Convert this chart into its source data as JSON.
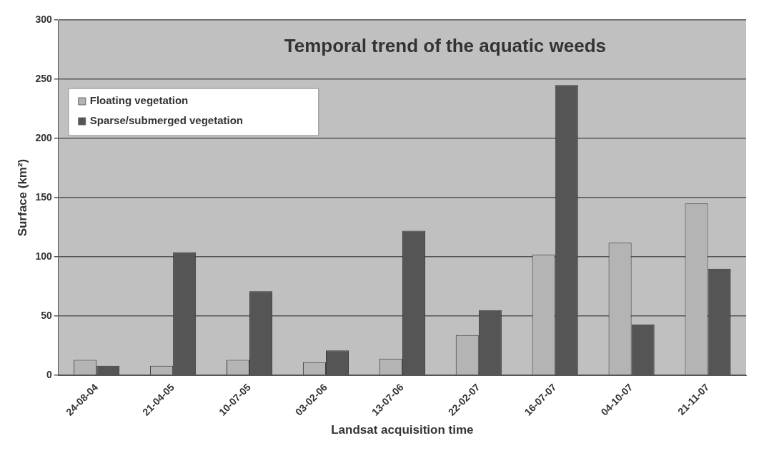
{
  "chart_data": {
    "type": "bar",
    "title": "Temporal trend of the aquatic weeds",
    "xlabel": "Landsat acquisition time",
    "ylabel": "Surface (km²)",
    "categories": [
      "24-08-04",
      "21-04-05",
      "10-07-05",
      "03-02-06",
      "13-07-06",
      "22-02-07",
      "16-07-07",
      "04-10-07",
      "21-11-07"
    ],
    "series": [
      {
        "name": "Floating vegetation",
        "color": "#b4b4b4",
        "values": [
          13,
          8,
          13,
          11,
          14,
          34,
          102,
          112,
          145
        ]
      },
      {
        "name": "Sparse/submerged vegetation",
        "color": "#555555",
        "values": [
          8,
          104,
          71,
          21,
          122,
          55,
          245,
          43,
          90
        ]
      }
    ],
    "ylim": [
      0,
      300
    ],
    "yticks": [
      0,
      50,
      100,
      150,
      200,
      250,
      300
    ],
    "grid": "y",
    "legend": "top left"
  }
}
